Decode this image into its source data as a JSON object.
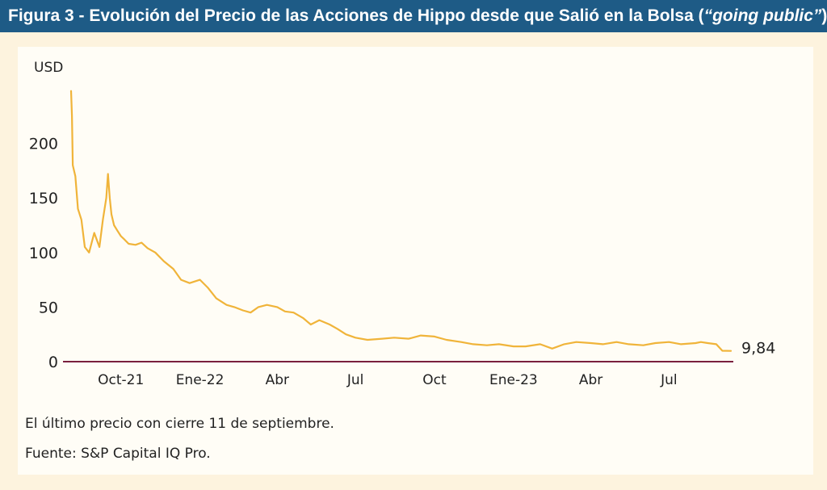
{
  "figure": {
    "title_prefix": "Figura 3 - Evolución del Precio de las Acciones de Hippo desde que Salió en la Bolsa (",
    "title_emphasis": "“going public”",
    "title_suffix": ")",
    "note": "El último precio con cierre 11 de septiembre.",
    "source": "Fuente: S&P Capital IQ Pro."
  },
  "colors": {
    "header_bar": "#1e5b86",
    "outer_background": "#fdf3de",
    "panel_background": "#fffdf6",
    "line": "#f0b43a",
    "axis": "#7a1f3d"
  },
  "chart_data": {
    "type": "line",
    "ylabel": "USD",
    "ylim": [
      0,
      250
    ],
    "yticks": [
      0,
      50,
      100,
      150,
      200
    ],
    "xlim": [
      "2021-08-04",
      "2023-09-11"
    ],
    "xticks": [
      {
        "date": "2021-10-01",
        "label": "Oct-21"
      },
      {
        "date": "2022-01-01",
        "label": "Ene-22"
      },
      {
        "date": "2022-04-01",
        "label": "Abr"
      },
      {
        "date": "2022-07-01",
        "label": "Jul"
      },
      {
        "date": "2022-10-01",
        "label": "Oct"
      },
      {
        "date": "2023-01-01",
        "label": "Ene-23"
      },
      {
        "date": "2023-04-01",
        "label": "Abr"
      },
      {
        "date": "2023-07-01",
        "label": "Jul"
      }
    ],
    "grid": false,
    "last_value_label": "9,84",
    "series": [
      {
        "x": [
          "2021-08-04",
          "2021-08-05",
          "2021-08-06",
          "2021-08-09",
          "2021-08-12",
          "2021-08-16",
          "2021-08-20",
          "2021-08-25",
          "2021-08-31",
          "2021-09-06",
          "2021-09-10",
          "2021-09-14",
          "2021-09-16",
          "2021-09-18",
          "2021-09-20",
          "2021-09-23",
          "2021-09-27",
          "2021-10-01",
          "2021-10-05",
          "2021-10-10",
          "2021-10-18",
          "2021-10-25",
          "2021-11-01",
          "2021-11-10",
          "2021-11-20",
          "2021-12-01",
          "2021-12-10",
          "2021-12-20",
          "2022-01-01",
          "2022-01-10",
          "2022-01-20",
          "2022-02-01",
          "2022-02-10",
          "2022-02-20",
          "2022-03-01",
          "2022-03-10",
          "2022-03-20",
          "2022-04-01",
          "2022-04-10",
          "2022-04-20",
          "2022-05-01",
          "2022-05-10",
          "2022-05-20",
          "2022-06-01",
          "2022-06-10",
          "2022-06-20",
          "2022-07-01",
          "2022-07-15",
          "2022-08-01",
          "2022-08-15",
          "2022-09-01",
          "2022-09-15",
          "2022-10-01",
          "2022-10-15",
          "2022-11-01",
          "2022-11-15",
          "2022-12-01",
          "2022-12-15",
          "2023-01-01",
          "2023-01-15",
          "2023-02-01",
          "2023-02-15",
          "2023-03-01",
          "2023-03-15",
          "2023-04-01",
          "2023-04-15",
          "2023-05-01",
          "2023-05-15",
          "2023-06-01",
          "2023-06-15",
          "2023-07-01",
          "2023-07-15",
          "2023-08-01",
          "2023-08-07",
          "2023-08-15",
          "2023-08-25",
          "2023-09-01",
          "2023-09-11"
        ],
        "y": [
          248,
          225,
          180,
          170,
          140,
          130,
          105,
          100,
          118,
          105,
          130,
          150,
          172,
          150,
          135,
          125,
          120,
          115,
          112,
          108,
          107,
          109,
          104,
          100,
          92,
          85,
          75,
          72,
          75,
          68,
          58,
          52,
          50,
          47,
          45,
          50,
          52,
          50,
          46,
          45,
          40,
          34,
          38,
          34,
          30,
          25,
          22,
          20,
          21,
          22,
          21,
          24,
          23,
          20,
          18,
          16,
          15,
          16,
          14,
          14,
          16,
          12,
          16,
          18,
          17,
          16,
          18,
          16,
          15,
          17,
          18,
          16,
          17,
          18,
          17,
          16,
          10,
          9.84
        ]
      }
    ]
  }
}
